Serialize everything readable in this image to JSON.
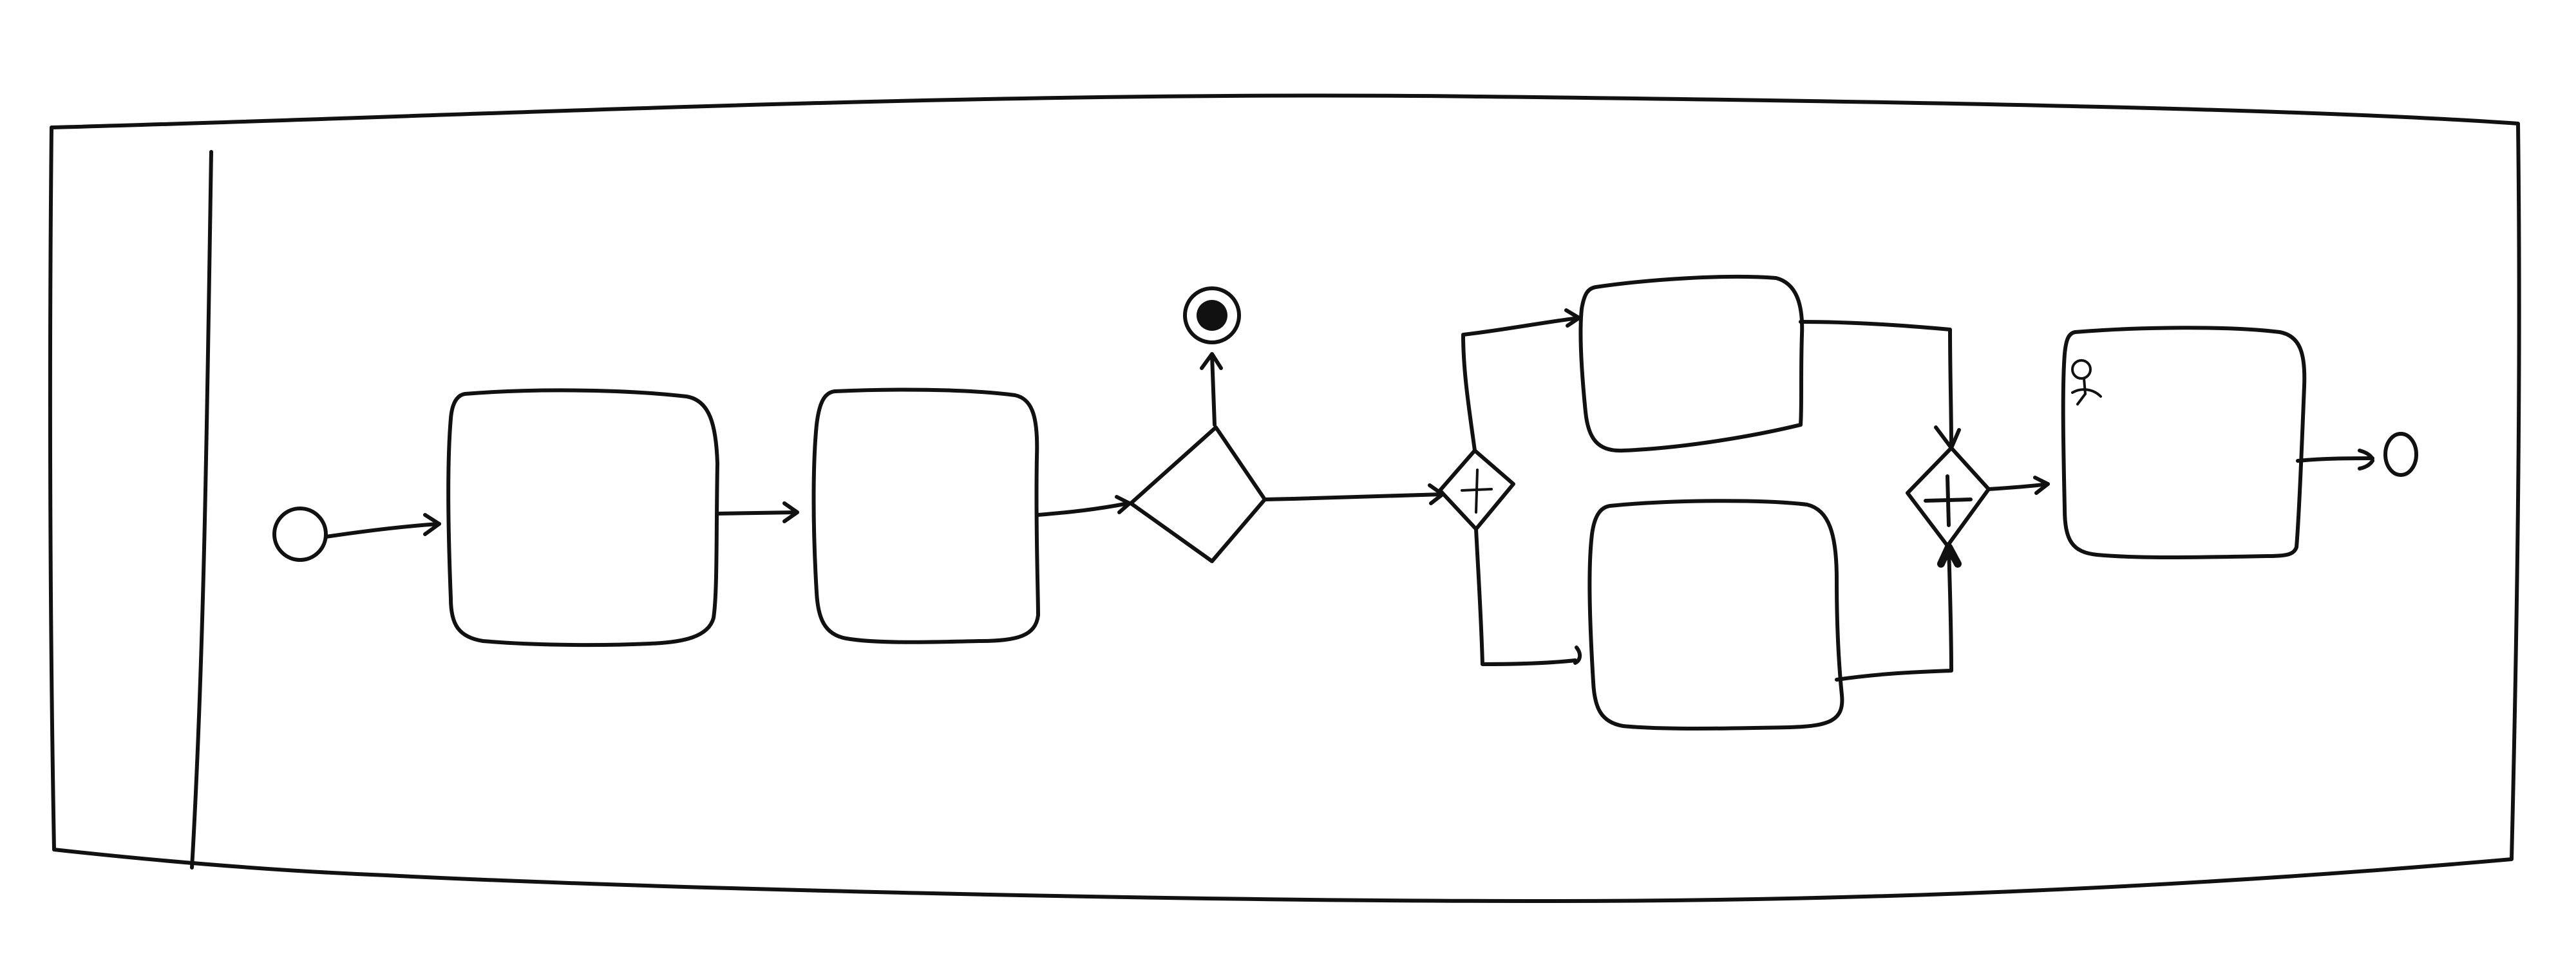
{
  "diagram": {
    "notation": "BPMN",
    "pool": {
      "label": ""
    },
    "nodes": [
      {
        "id": "start",
        "type": "start-event",
        "label": ""
      },
      {
        "id": "task1",
        "type": "task",
        "label": ""
      },
      {
        "id": "task2",
        "type": "task",
        "label": ""
      },
      {
        "id": "xor1",
        "type": "exclusive-gateway",
        "label": ""
      },
      {
        "id": "end_terminate",
        "type": "terminate-end-event",
        "label": ""
      },
      {
        "id": "and_split",
        "type": "parallel-gateway",
        "label": ""
      },
      {
        "id": "task_upper",
        "type": "task",
        "label": ""
      },
      {
        "id": "task_lower",
        "type": "task",
        "label": ""
      },
      {
        "id": "and_join",
        "type": "parallel-gateway",
        "label": ""
      },
      {
        "id": "user_task",
        "type": "user-task",
        "label": ""
      },
      {
        "id": "end",
        "type": "end-event",
        "label": ""
      }
    ],
    "flows": [
      {
        "from": "start",
        "to": "task1"
      },
      {
        "from": "task1",
        "to": "task2"
      },
      {
        "from": "task2",
        "to": "xor1"
      },
      {
        "from": "xor1",
        "to": "end_terminate"
      },
      {
        "from": "xor1",
        "to": "and_split"
      },
      {
        "from": "and_split",
        "to": "task_upper"
      },
      {
        "from": "and_split",
        "to": "task_lower"
      },
      {
        "from": "task_upper",
        "to": "and_join"
      },
      {
        "from": "task_lower",
        "to": "and_join"
      },
      {
        "from": "and_join",
        "to": "user_task"
      },
      {
        "from": "user_task",
        "to": "end"
      }
    ],
    "colors": {
      "ink": "#111111",
      "paper": "#ffffff"
    }
  }
}
